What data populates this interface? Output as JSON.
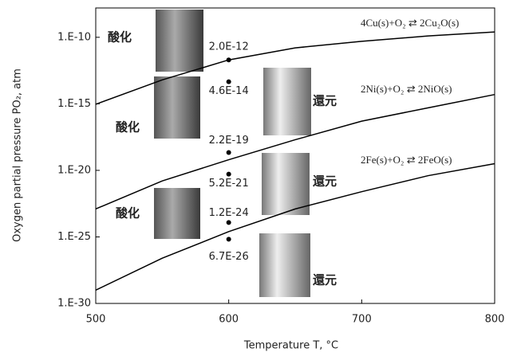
{
  "chart_data": {
    "type": "line",
    "x_label": "Temperature T, °C",
    "y_label": "Oxygen partial pressure PO₂, atm",
    "xlim": [
      500,
      800
    ],
    "xticks": [
      500,
      600,
      700,
      800
    ],
    "ylim": [
      1e-30,
      1.6e-08
    ],
    "log_y": true,
    "yticks": [
      {
        "value": 1e-30,
        "label": "1.E-30"
      },
      {
        "value": 1e-25,
        "label": "1.E-25"
      },
      {
        "value": 1e-20,
        "label": "1.E-20"
      },
      {
        "value": 1e-15,
        "label": "1.E-15"
      },
      {
        "value": 1e-10,
        "label": "1.E-10"
      }
    ],
    "x": [
      500,
      550,
      600,
      650,
      700,
      750,
      800
    ],
    "series": [
      {
        "name": "4Cu(s)+O₂ ⇄ 2Cu₂O(s)",
        "color": "#000000",
        "values": [
          9.3e-16,
          6.3e-14,
          2e-12,
          1.6e-11,
          5e-11,
          1.26e-10,
          2.5e-10
        ]
      },
      {
        "name": "2Ni(s)+O₂ ⇄ 2NiO(s)",
        "color": "#000000",
        "values": [
          1.26e-23,
          1.6e-21,
          6.3e-20,
          2e-18,
          5e-17,
          5e-16,
          5e-15
        ]
      },
      {
        "name": "2Fe(s)+O₂ ⇄ 2FeO(s)",
        "color": "#000000",
        "values": [
          1e-29,
          2.5e-27,
          2.5e-25,
          1.26e-23,
          2.5e-22,
          4e-21,
          3.2e-20
        ]
      }
    ],
    "markers": {
      "color": "#000000",
      "x": [
        600,
        600,
        600,
        600,
        600,
        600
      ],
      "values": [
        2e-12,
        4.6e-14,
        2.2e-19,
        5.2e-21,
        1.2e-24,
        6.7e-26
      ],
      "value_labels": [
        "2.0E-12",
        "4.6E-14",
        "2.2E-19",
        "5.2E-21",
        "1.2E-24",
        "6.7E-26"
      ]
    },
    "annotations": [
      "酸化",
      "酸化",
      "酸化",
      "還元",
      "還元",
      "還元"
    ]
  }
}
